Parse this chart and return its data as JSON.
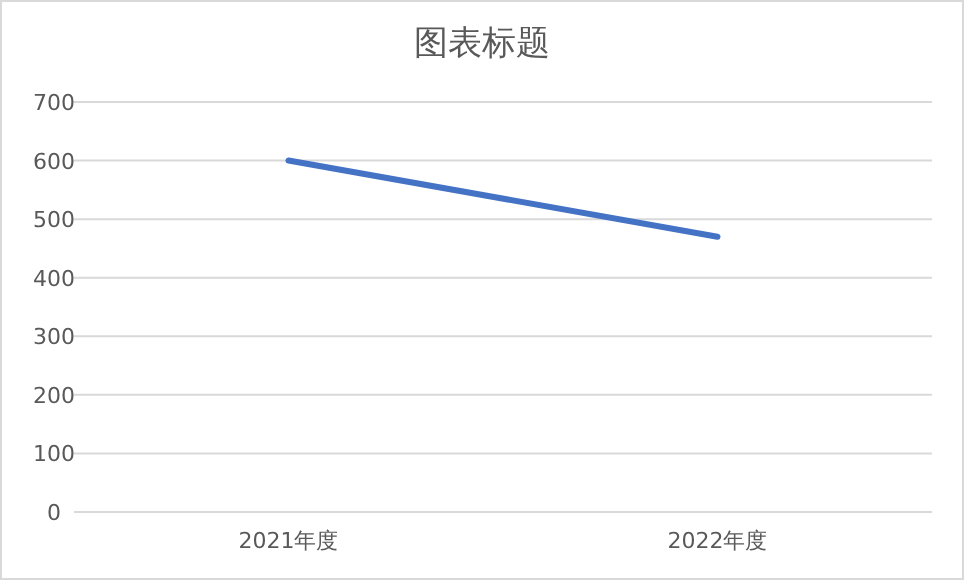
{
  "chart_data": {
    "type": "line",
    "title": "图表标题",
    "categories": [
      "2021年度",
      "2022年度"
    ],
    "series": [
      {
        "color": "#4472c4",
        "values": [
          600,
          470
        ]
      }
    ],
    "ylim": [
      0,
      700
    ],
    "yticks": [
      0,
      100,
      200,
      300,
      400,
      500,
      600,
      700
    ],
    "grid": "y"
  }
}
